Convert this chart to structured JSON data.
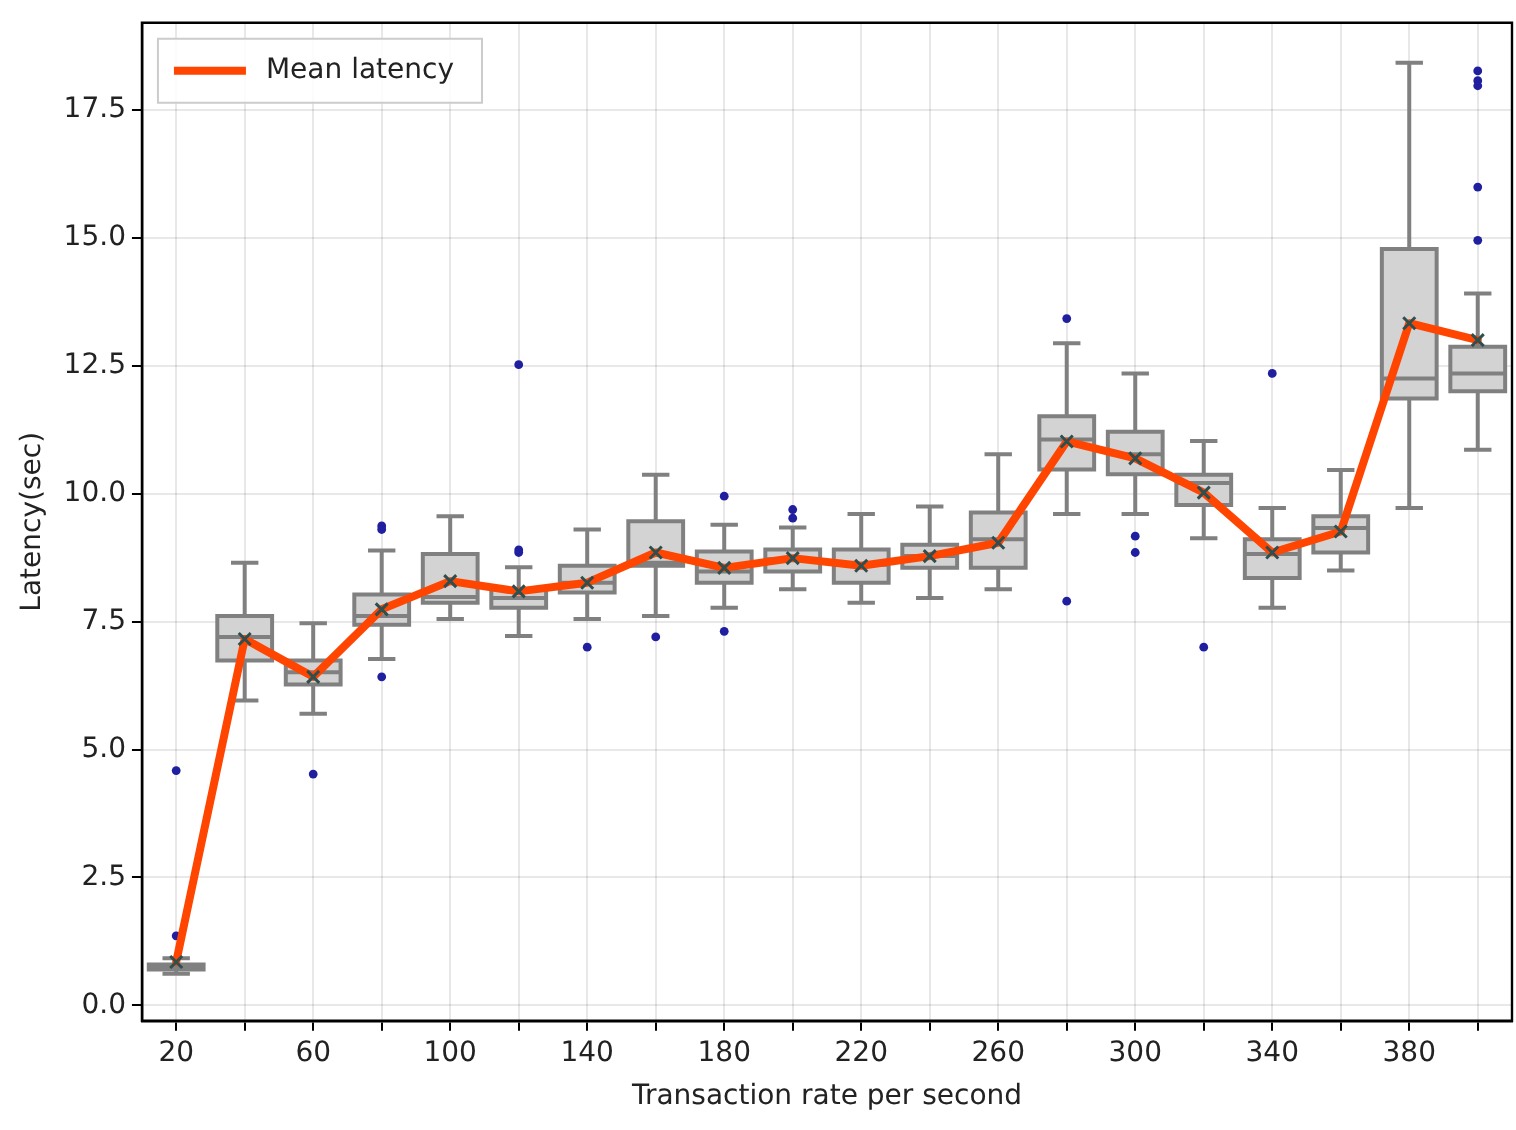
{
  "chart_data": {
    "type": "box",
    "xlabel": "Transaction rate per second",
    "ylabel": "Latency(sec)",
    "categories": [
      "20",
      null,
      "60",
      null,
      "100",
      null,
      "140",
      null,
      "180",
      null,
      "220",
      null,
      "260",
      null,
      "300",
      null,
      "340",
      null,
      "380",
      null
    ],
    "ylim": [
      -0.3,
      19.2
    ],
    "yticks": [
      {
        "value": 0,
        "label": "0.0"
      },
      2.5,
      {
        "value": 5,
        "label": "5.0"
      },
      7.5,
      {
        "value": 10,
        "label": "10.0"
      },
      12.5,
      {
        "value": 15,
        "label": "15.0"
      },
      17.5
    ],
    "grid": true,
    "legend": "top left",
    "color": "#d3d3d3",
    "boxes": [
      {
        "low": 0.62,
        "q1": 0.7,
        "median": 0.75,
        "q3": 0.8,
        "high": 0.92,
        "mean": 0.85,
        "outliers": [
          4.59,
          1.36
        ]
      },
      {
        "low": 5.96,
        "q1": 6.74,
        "median": 7.2,
        "q3": 7.61,
        "high": 8.65,
        "mean": 7.16
      },
      {
        "low": 5.7,
        "q1": 6.27,
        "median": 6.51,
        "q3": 6.74,
        "high": 7.47,
        "mean": 6.42,
        "outliers": [
          4.52
        ]
      },
      {
        "low": 6.77,
        "q1": 7.44,
        "median": 7.61,
        "q3": 8.03,
        "high": 8.89,
        "mean": 7.74,
        "outliers": [
          9.37,
          9.3,
          6.42
        ]
      },
      {
        "low": 7.55,
        "q1": 7.87,
        "median": 7.98,
        "q3": 8.82,
        "high": 9.56,
        "mean": 8.29
      },
      {
        "low": 7.22,
        "q1": 7.77,
        "median": 7.96,
        "q3": 8.13,
        "high": 8.56,
        "mean": 8.09,
        "outliers": [
          12.52,
          8.9,
          8.85
        ]
      },
      {
        "low": 7.55,
        "q1": 8.07,
        "median": 8.26,
        "q3": 8.59,
        "high": 9.3,
        "mean": 8.26,
        "outliers": [
          7.0
        ]
      },
      {
        "low": 7.61,
        "q1": 8.59,
        "median": 8.65,
        "q3": 9.46,
        "high": 10.37,
        "mean": 8.85,
        "outliers": [
          7.2
        ]
      },
      {
        "low": 7.77,
        "q1": 8.26,
        "median": 8.48,
        "q3": 8.87,
        "high": 9.39,
        "mean": 8.55,
        "outliers": [
          9.95,
          7.31
        ]
      },
      {
        "low": 8.13,
        "q1": 8.48,
        "median": 8.72,
        "q3": 8.91,
        "high": 9.34,
        "mean": 8.74,
        "outliers": [
          9.69,
          9.52
        ]
      },
      {
        "low": 7.87,
        "q1": 8.26,
        "median": 8.61,
        "q3": 8.91,
        "high": 9.6,
        "mean": 8.59
      },
      {
        "low": 7.96,
        "q1": 8.55,
        "median": 8.78,
        "q3": 9.0,
        "high": 9.75,
        "mean": 8.78
      },
      {
        "low": 8.13,
        "q1": 8.55,
        "median": 9.11,
        "q3": 9.63,
        "high": 10.77,
        "mean": 9.04
      },
      {
        "low": 9.6,
        "q1": 10.47,
        "median": 11.06,
        "q3": 11.51,
        "high": 12.94,
        "mean": 11.02,
        "outliers": [
          13.42,
          7.9
        ]
      },
      {
        "low": 9.6,
        "q1": 10.38,
        "median": 10.77,
        "q3": 11.21,
        "high": 12.35,
        "mean": 10.69,
        "outliers": [
          9.17,
          8.85
        ]
      },
      {
        "low": 9.13,
        "q1": 9.78,
        "median": 10.21,
        "q3": 10.37,
        "high": 11.03,
        "mean": 10.02,
        "outliers": [
          7.0
        ]
      },
      {
        "low": 7.77,
        "q1": 8.35,
        "median": 8.82,
        "q3": 9.11,
        "high": 9.72,
        "mean": 8.85,
        "outliers": [
          12.35
        ]
      },
      {
        "low": 8.5,
        "q1": 8.85,
        "median": 9.33,
        "q3": 9.56,
        "high": 10.46,
        "mean": 9.26
      },
      {
        "low": 9.72,
        "q1": 11.86,
        "median": 12.25,
        "q3": 14.78,
        "high": 18.42,
        "mean": 13.33
      },
      {
        "low": 10.86,
        "q1": 12.0,
        "median": 12.35,
        "q3": 12.87,
        "high": 13.91,
        "mean": 13.0,
        "outliers": [
          18.26,
          18.07,
          17.97,
          15.99,
          14.95
        ]
      }
    ],
    "series": [
      {
        "name": "Mean latency",
        "type": "line",
        "color": "#ff4500",
        "values": [
          0.85,
          7.16,
          6.42,
          7.74,
          8.29,
          8.09,
          8.26,
          8.85,
          8.55,
          8.74,
          8.59,
          8.78,
          9.04,
          11.02,
          10.69,
          10.02,
          8.85,
          9.26,
          13.33,
          13.0
        ]
      }
    ]
  }
}
